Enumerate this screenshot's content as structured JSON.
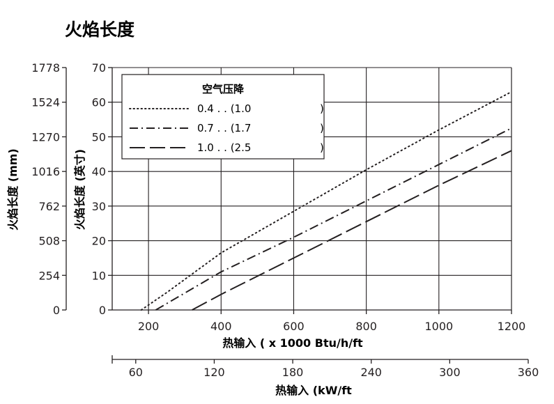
{
  "title": "火焰长度",
  "chart_data": {
    "type": "line",
    "title": "火焰长度",
    "x": [
      200,
      400,
      600,
      800,
      1000,
      1200
    ],
    "x_range": [
      100,
      1200
    ],
    "y_range": [
      0,
      70
    ],
    "xlabel": "热输入 ( x 1000 Btu/h/ft",
    "xlabel_secondary": "热输入 (kW/ft",
    "ylabel": "火焰长度 (英寸",
    "ylabel_secondary": "火焰长度 (mm)",
    "x_ticks": [
      "200",
      "400",
      "600",
      "800",
      "1000",
      "1200"
    ],
    "x_ticks_secondary": [
      "60",
      "120",
      "180",
      "240",
      "300",
      "360"
    ],
    "y_ticks": [
      "0",
      "10",
      "20",
      "30",
      "40",
      "50",
      "60",
      "70"
    ],
    "y_ticks_secondary": [
      "0",
      "254",
      "508",
      "762",
      "1016",
      "1270",
      "1524",
      "1778"
    ],
    "grid": true,
    "legend": {
      "title": "空气压降",
      "position": "top-left",
      "entries": [
        {
          "label": "0.4    .  . (1.0",
          "close": ")",
          "style": "dotted"
        },
        {
          "label": "0.7    .  . (1.7",
          "close": ")",
          "style": "dash-dot"
        },
        {
          "label": "1.0    .  . (2.5",
          "close": ")",
          "style": "long-dash"
        }
      ]
    },
    "series": [
      {
        "name": "0.4",
        "style": "dotted",
        "points": [
          [
            180,
            0
          ],
          [
            250,
            5
          ],
          [
            400,
            16.5
          ],
          [
            600,
            28.5
          ],
          [
            800,
            40.5
          ],
          [
            1000,
            52
          ],
          [
            1200,
            63
          ]
        ]
      },
      {
        "name": "0.7",
        "style": "dash-dot",
        "points": [
          [
            220,
            0
          ],
          [
            400,
            11
          ],
          [
            600,
            21
          ],
          [
            800,
            31.5
          ],
          [
            1000,
            42
          ],
          [
            1200,
            52.5
          ]
        ]
      },
      {
        "name": "1.0",
        "style": "long-dash",
        "points": [
          [
            320,
            0
          ],
          [
            400,
            4.5
          ],
          [
            600,
            15
          ],
          [
            800,
            25.5
          ],
          [
            1000,
            36
          ],
          [
            1200,
            46
          ]
        ]
      }
    ]
  }
}
